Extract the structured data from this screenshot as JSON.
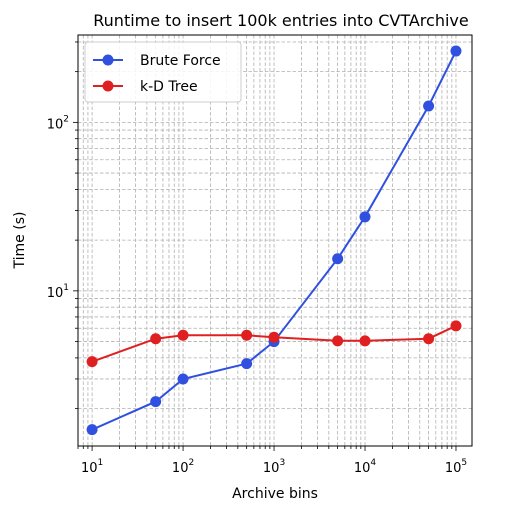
{
  "chart_data": {
    "type": "line",
    "title": "Runtime to insert 100k entries into CVTArchive",
    "xlabel": "Archive bins",
    "ylabel": "Time (s)",
    "xscale": "log",
    "yscale": "log",
    "xlim": [
      7,
      150000
    ],
    "ylim": [
      1.2,
      330
    ],
    "grid": true,
    "legend": "top-left",
    "x": [
      10,
      50,
      100,
      500,
      1000,
      5000,
      10000,
      50000,
      100000
    ],
    "x_tick_labels": [
      {
        "value": 10,
        "base": "10",
        "exp": "1"
      },
      {
        "value": 100,
        "base": "10",
        "exp": "2"
      },
      {
        "value": 1000,
        "base": "10",
        "exp": "3"
      },
      {
        "value": 10000,
        "base": "10",
        "exp": "4"
      },
      {
        "value": 100000,
        "base": "10",
        "exp": "5"
      }
    ],
    "y_tick_labels": [
      {
        "value": 10,
        "base": "10",
        "exp": "1"
      },
      {
        "value": 100,
        "base": "10",
        "exp": "2"
      }
    ],
    "series": [
      {
        "name": "Brute Force",
        "color": "#3050e0",
        "values": [
          1.5,
          2.2,
          3.0,
          3.7,
          5.0,
          15.5,
          27.5,
          125,
          265
        ]
      },
      {
        "name": "k-D Tree",
        "color": "#e02020",
        "values": [
          3.8,
          5.2,
          5.45,
          5.45,
          5.3,
          5.05,
          5.05,
          5.2,
          6.2
        ]
      }
    ]
  }
}
